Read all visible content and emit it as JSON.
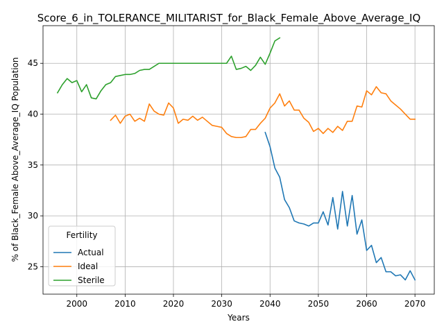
{
  "chart_data": {
    "type": "line",
    "title": "Score_6_in_TOLERANCE_MILITARIST_for_Black_Female_Above_Average_IQ",
    "xlabel": "Years",
    "ylabel": "% of Black_Female Above_Average_IQ Population",
    "xlim": [
      1993,
      2074
    ],
    "ylim": [
      22.3,
      48.7
    ],
    "x_ticks": [
      2000,
      2010,
      2020,
      2030,
      2040,
      2050,
      2060,
      2070
    ],
    "y_ticks": [
      25,
      30,
      35,
      40,
      45
    ],
    "grid": true,
    "legend": {
      "title": "Fertility",
      "placement": "lower-left"
    },
    "series": [
      {
        "name": "Actual",
        "color": "#1f77b4",
        "x": [
          2039,
          2040,
          2041,
          2042,
          2043,
          2044,
          2045,
          2046,
          2047,
          2048,
          2049,
          2050,
          2051,
          2052,
          2053,
          2054,
          2055,
          2056,
          2057,
          2058,
          2059,
          2060,
          2061,
          2062,
          2063,
          2064,
          2065,
          2066,
          2067,
          2068,
          2069,
          2070
        ],
        "values": [
          38.2,
          36.8,
          34.7,
          33.8,
          31.6,
          30.8,
          29.5,
          29.3,
          29.2,
          29.0,
          29.3,
          29.3,
          30.4,
          29.1,
          31.8,
          28.7,
          32.4,
          29.0,
          32.0,
          28.2,
          29.6,
          26.6,
          27.1,
          25.4,
          25.9,
          24.5,
          24.5,
          24.1,
          24.2,
          23.7,
          24.6,
          23.7
        ]
      },
      {
        "name": "Ideal",
        "color": "#ff7f0e",
        "x": [
          2007,
          2008,
          2009,
          2010,
          2011,
          2012,
          2013,
          2014,
          2015,
          2016,
          2017,
          2018,
          2019,
          2020,
          2021,
          2022,
          2023,
          2024,
          2025,
          2026,
          2027,
          2028,
          2029,
          2030,
          2031,
          2032,
          2033,
          2034,
          2035,
          2036,
          2037,
          2038,
          2039,
          2040,
          2041,
          2042,
          2043,
          2044,
          2045,
          2046,
          2047,
          2048,
          2049,
          2050,
          2051,
          2052,
          2053,
          2054,
          2055,
          2056,
          2057,
          2058,
          2059,
          2060,
          2061,
          2062,
          2063,
          2064,
          2065,
          2066,
          2067,
          2068,
          2069,
          2070
        ],
        "values": [
          39.4,
          39.9,
          39.1,
          39.8,
          40.0,
          39.3,
          39.6,
          39.3,
          41.0,
          40.3,
          40.0,
          39.9,
          41.1,
          40.6,
          39.1,
          39.5,
          39.4,
          39.8,
          39.4,
          39.7,
          39.3,
          38.9,
          38.8,
          38.7,
          38.1,
          37.8,
          37.7,
          37.7,
          37.8,
          38.5,
          38.5,
          39.1,
          39.6,
          40.6,
          41.1,
          42.0,
          40.8,
          41.3,
          40.4,
          40.4,
          39.6,
          39.2,
          38.3,
          38.6,
          38.1,
          38.6,
          38.2,
          38.8,
          38.4,
          39.3,
          39.3,
          40.8,
          40.7,
          42.3,
          41.9,
          42.7,
          42.1,
          42.0,
          41.3,
          40.9,
          40.5,
          40.0,
          39.5,
          39.5
        ]
      },
      {
        "name": "Sterile",
        "color": "#2ca02c",
        "x": [
          1996,
          1997,
          1998,
          1999,
          2000,
          2001,
          2002,
          2003,
          2004,
          2005,
          2006,
          2007,
          2008,
          2009,
          2010,
          2011,
          2012,
          2013,
          2014,
          2015,
          2016,
          2017,
          2018,
          2019,
          2020,
          2021,
          2022,
          2023,
          2024,
          2025,
          2026,
          2027,
          2028,
          2029,
          2030,
          2031,
          2032,
          2033,
          2034,
          2035,
          2036,
          2037,
          2038,
          2039,
          2040,
          2041,
          2042
        ],
        "values": [
          42.1,
          42.9,
          43.5,
          43.1,
          43.3,
          42.2,
          42.9,
          41.6,
          41.5,
          42.3,
          42.9,
          43.1,
          43.7,
          43.8,
          43.9,
          43.9,
          44.0,
          44.3,
          44.4,
          44.4,
          44.7,
          45.0,
          45.0,
          45.0,
          45.0,
          45.0,
          45.0,
          45.0,
          45.0,
          45.0,
          45.0,
          45.0,
          45.0,
          45.0,
          45.0,
          45.0,
          45.7,
          44.4,
          44.5,
          44.7,
          44.3,
          44.8,
          45.6,
          44.9,
          46.0,
          47.2,
          47.5
        ]
      }
    ]
  }
}
